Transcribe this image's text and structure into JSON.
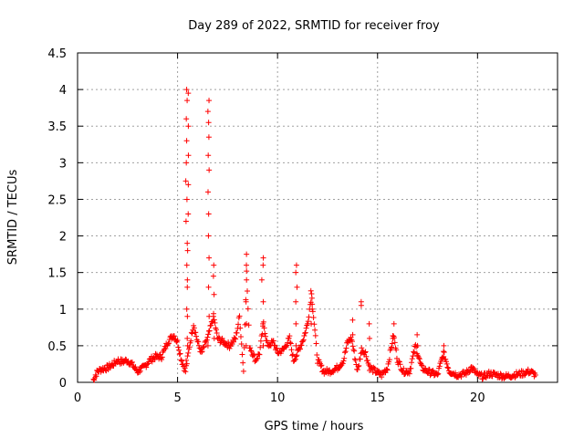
{
  "chart_data": {
    "type": "scatter",
    "title": "Day 289 of 2022, SRMTID for receiver froy",
    "xlabel": "GPS time / hours",
    "ylabel": "SRMTID / TECUs",
    "xlim": [
      0,
      24
    ],
    "ylim": [
      0,
      4.5
    ],
    "x_ticks": [
      0,
      5,
      10,
      15,
      20
    ],
    "x_tick_labels": [
      "0",
      "5",
      "10",
      "15",
      "20"
    ],
    "y_ticks": [
      0,
      0.5,
      1,
      1.5,
      2,
      2.5,
      3,
      3.5,
      4,
      4.5
    ],
    "y_tick_labels": [
      "0",
      "0.5",
      "1",
      "1.5",
      "2",
      "2.5",
      "3",
      "3.5",
      "4",
      "4.5"
    ],
    "grid": true,
    "marker": "+",
    "color": "#ff0000",
    "series": [
      {
        "name": "SRMTID",
        "profile": [
          [
            0.8,
            0.0
          ],
          [
            0.9,
            0.1
          ],
          [
            1.0,
            0.15
          ],
          [
            1.2,
            0.18
          ],
          [
            1.5,
            0.2
          ],
          [
            1.8,
            0.25
          ],
          [
            2.0,
            0.3
          ],
          [
            2.2,
            0.28
          ],
          [
            2.5,
            0.3
          ],
          [
            2.7,
            0.25
          ],
          [
            3.0,
            0.15
          ],
          [
            3.3,
            0.2
          ],
          [
            3.6,
            0.3
          ],
          [
            3.9,
            0.35
          ],
          [
            4.2,
            0.35
          ],
          [
            4.5,
            0.55
          ],
          [
            4.8,
            0.65
          ],
          [
            5.0,
            0.55
          ],
          [
            5.2,
            0.3
          ],
          [
            5.4,
            0.15
          ],
          [
            5.6,
            0.5
          ],
          [
            5.8,
            0.8
          ],
          [
            6.0,
            0.55
          ],
          [
            6.2,
            0.4
          ],
          [
            6.5,
            0.6
          ],
          [
            6.8,
            0.9
          ],
          [
            7.0,
            0.6
          ],
          [
            7.3,
            0.55
          ],
          [
            7.6,
            0.5
          ],
          [
            7.9,
            0.6
          ],
          [
            8.1,
            0.9
          ],
          [
            8.3,
            0.15
          ],
          [
            8.45,
            1.5
          ],
          [
            8.6,
            0.5
          ],
          [
            8.9,
            0.3
          ],
          [
            9.1,
            0.4
          ],
          [
            9.3,
            0.8
          ],
          [
            9.5,
            0.5
          ],
          [
            9.8,
            0.55
          ],
          [
            10.0,
            0.4
          ],
          [
            10.3,
            0.45
          ],
          [
            10.6,
            0.6
          ],
          [
            10.8,
            0.3
          ],
          [
            11.0,
            0.4
          ],
          [
            11.3,
            0.6
          ],
          [
            11.5,
            0.8
          ],
          [
            11.7,
            1.2
          ],
          [
            12.0,
            0.3
          ],
          [
            12.3,
            0.15
          ],
          [
            12.6,
            0.15
          ],
          [
            13.0,
            0.2
          ],
          [
            13.3,
            0.3
          ],
          [
            13.5,
            0.55
          ],
          [
            13.7,
            0.6
          ],
          [
            14.0,
            0.15
          ],
          [
            14.2,
            0.45
          ],
          [
            14.4,
            0.4
          ],
          [
            14.6,
            0.2
          ],
          [
            14.9,
            0.15
          ],
          [
            15.2,
            0.1
          ],
          [
            15.5,
            0.2
          ],
          [
            15.8,
            0.65
          ],
          [
            16.0,
            0.3
          ],
          [
            16.3,
            0.15
          ],
          [
            16.6,
            0.15
          ],
          [
            16.9,
            0.5
          ],
          [
            17.2,
            0.2
          ],
          [
            17.5,
            0.15
          ],
          [
            17.8,
            0.12
          ],
          [
            18.0,
            0.1
          ],
          [
            18.3,
            0.4
          ],
          [
            18.6,
            0.15
          ],
          [
            19.0,
            0.1
          ],
          [
            19.4,
            0.12
          ],
          [
            19.7,
            0.2
          ],
          [
            20.0,
            0.1
          ],
          [
            20.3,
            0.08
          ],
          [
            20.6,
            0.12
          ],
          [
            21.0,
            0.1
          ],
          [
            21.4,
            0.08
          ],
          [
            21.8,
            0.1
          ],
          [
            22.2,
            0.12
          ],
          [
            22.6,
            0.15
          ],
          [
            22.9,
            0.1
          ]
        ],
        "spikes": [
          {
            "x": 5.45,
            "values": [
              0.3,
              0.6,
              1.0,
              1.3,
              1.6,
              1.9,
              2.2,
              2.5,
              2.75,
              3.0,
              3.3,
              3.6,
              3.85,
              4.0
            ]
          },
          {
            "x": 5.52,
            "values": [
              0.5,
              0.9,
              1.4,
              1.8,
              2.3,
              2.7,
              3.1,
              3.5,
              3.95
            ]
          },
          {
            "x": 6.55,
            "values": [
              0.5,
              0.9,
              1.3,
              1.7,
              2.0,
              2.3,
              2.6,
              2.9,
              3.1,
              3.35,
              3.55,
              3.7,
              3.85
            ]
          },
          {
            "x": 6.8,
            "values": [
              0.6,
              0.9,
              1.2,
              1.45,
              1.6
            ]
          },
          {
            "x": 8.45,
            "values": [
              0.5,
              0.8,
              1.1,
              1.4,
              1.6,
              1.75
            ]
          },
          {
            "x": 9.25,
            "values": [
              0.5,
              0.8,
              1.1,
              1.4,
              1.6,
              1.7
            ]
          },
          {
            "x": 10.95,
            "values": [
              0.5,
              0.8,
              1.1,
              1.3,
              1.5,
              1.6
            ]
          },
          {
            "x": 11.7,
            "values": [
              0.8,
              1.0,
              1.15,
              1.25
            ]
          },
          {
            "x": 14.2,
            "values": [
              1.05,
              1.1
            ]
          },
          {
            "x": 13.75,
            "values": [
              0.65,
              0.85
            ]
          },
          {
            "x": 14.6,
            "values": [
              0.6,
              0.8
            ]
          },
          {
            "x": 15.8,
            "values": [
              0.6,
              0.8
            ]
          },
          {
            "x": 17.0,
            "values": [
              0.5,
              0.65
            ]
          },
          {
            "x": 18.3,
            "values": [
              0.35,
              0.5
            ]
          }
        ]
      }
    ]
  }
}
